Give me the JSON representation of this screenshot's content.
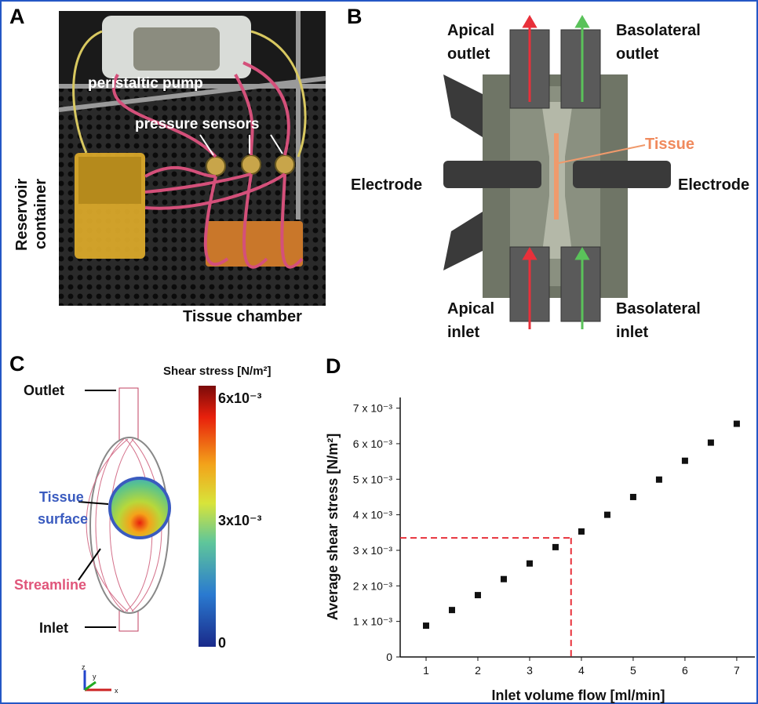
{
  "panel_labels": [
    "A",
    "B",
    "C",
    "D"
  ],
  "panel_a": {
    "pump": "peristaltic pump",
    "sensors": "pressure sensors",
    "reservoir": [
      "Reservoir",
      "container"
    ],
    "chamber": "Tissue chamber"
  },
  "panel_b": {
    "apical_outlet": [
      "Apical",
      "outlet"
    ],
    "basolateral_outlet": [
      "Basolateral",
      "outlet"
    ],
    "tissue": "Tissue",
    "electrode_left": "Electrode",
    "electrode_right": "Electrode",
    "apical_inlet": [
      "Apical",
      "inlet"
    ],
    "basolateral_inlet": [
      "Basolateral",
      "inlet"
    ]
  },
  "panel_c": {
    "outlet": "Outlet",
    "tissue_surface": [
      "Tissue",
      "surface"
    ],
    "streamline": "Streamline",
    "inlet": "Inlet",
    "colorbar": {
      "title": "Shear stress [N/m²]",
      "labels": [
        "6x10⁻³",
        "3x10⁻³",
        "0"
      ]
    },
    "axes": [
      "z",
      "y",
      "x"
    ]
  },
  "chart_data": {
    "type": "scatter",
    "xlabel": "Inlet volume flow [ml/min]",
    "ylabel": "Average shear stress [N/m²]",
    "x": [
      1,
      1.5,
      2,
      2.5,
      3,
      3.5,
      4,
      4.5,
      5,
      5.5,
      6,
      6.5,
      7
    ],
    "values": [
      0.00088,
      0.00132,
      0.00174,
      0.00219,
      0.00263,
      0.00309,
      0.00353,
      0.004,
      0.0045,
      0.00499,
      0.00552,
      0.00603,
      0.00656
    ],
    "color": "#111111",
    "xlim": [
      0.5,
      7.35
    ],
    "ylim": [
      0,
      0.0073
    ],
    "xticks": [
      1,
      2,
      3,
      4,
      5,
      6,
      7
    ],
    "yticks": [
      0,
      {
        "value": 0.001,
        "label": "1 x 10⁻³"
      },
      {
        "value": 0.002,
        "label": "2 x 10⁻³"
      },
      {
        "value": 0.003,
        "label": "3 x 10⁻³"
      },
      {
        "value": 0.004,
        "label": "4 x 10⁻³"
      },
      {
        "value": 0.005,
        "label": "5 x 10⁻³"
      },
      {
        "value": 0.006,
        "label": "6 x 10⁻³"
      },
      {
        "value": 0.007,
        "label": "7 x 10⁻³"
      }
    ],
    "reference": {
      "x": 3.8,
      "y": 0.00335,
      "color": "#e8303a"
    }
  }
}
